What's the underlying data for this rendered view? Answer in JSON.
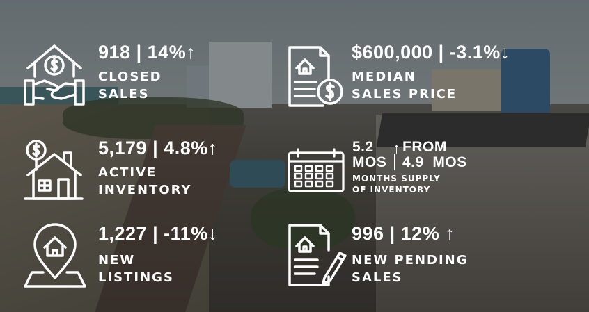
{
  "metrics": {
    "closed_sales": {
      "icon": "house-handshake-dollar-icon",
      "value": "918",
      "change": "14%",
      "direction": "↑",
      "label_line1": "CLOSED",
      "label_line2": "SALES"
    },
    "median_price": {
      "icon": "document-house-dollar-icon",
      "value": "$600,000",
      "change": "-3.1%",
      "direction": "↓",
      "label_line1": "MEDIAN",
      "label_line2": "SALES PRICE"
    },
    "active_inventory": {
      "icon": "house-dollar-balloon-icon",
      "value": "5,179",
      "change": "4.8%",
      "direction": "↑",
      "label_line1": "ACTIVE",
      "label_line2": "INVENTORY"
    },
    "months_supply": {
      "icon": "calendar-icon",
      "value_line1": "5.2",
      "value_line2": "MOS",
      "direction": "↑",
      "from_line1": "FROM",
      "from_line2": "4.9  MOS",
      "label_line1": "MONTHS SUPPLY",
      "label_line2": "OF INVENTORY"
    },
    "new_listings": {
      "icon": "house-location-pin-icon",
      "value": "1,227",
      "change": "-11%",
      "direction": "↓",
      "label_line1": "NEW",
      "label_line2": "LISTINGS"
    },
    "new_pending": {
      "icon": "document-house-pen-icon",
      "value": "996",
      "change": "12%",
      "direction": "↑",
      "label_line1": "NEW PENDING",
      "label_line2": "SALES"
    }
  },
  "separator": "|"
}
